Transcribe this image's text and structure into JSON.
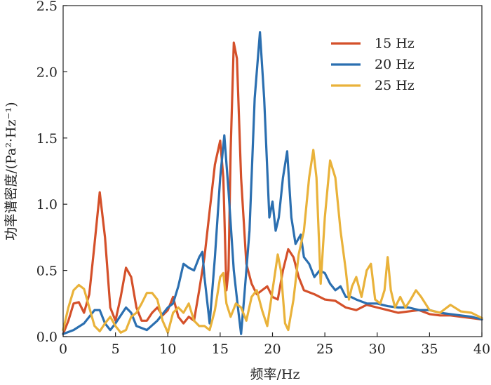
{
  "chart_data": {
    "type": "line",
    "title": "",
    "xlabel": "频率/Hz",
    "ylabel": "功率谱密度/(Pa²·Hz⁻¹)",
    "xlim": [
      0,
      40
    ],
    "ylim": [
      0,
      2.5
    ],
    "x_ticks": [
      0,
      5,
      10,
      15,
      20,
      25,
      30,
      35,
      40
    ],
    "y_ticks": [
      0.0,
      0.5,
      1.0,
      1.5,
      2.0,
      2.5
    ],
    "y_tick_labels": [
      "0.0",
      "0.5",
      "1.0",
      "1.5",
      "2.0",
      "2.5"
    ],
    "grid": false,
    "legend_position": "top-right",
    "series": [
      {
        "name": "15 Hz",
        "color": "#d4502a",
        "points": [
          [
            0,
            0.02
          ],
          [
            0.5,
            0.12
          ],
          [
            1,
            0.25
          ],
          [
            1.5,
            0.26
          ],
          [
            2,
            0.18
          ],
          [
            2.5,
            0.32
          ],
          [
            3,
            0.7
          ],
          [
            3.5,
            1.09
          ],
          [
            4,
            0.75
          ],
          [
            4.5,
            0.22
          ],
          [
            5,
            0.12
          ],
          [
            5.5,
            0.3
          ],
          [
            6,
            0.52
          ],
          [
            6.5,
            0.45
          ],
          [
            7,
            0.22
          ],
          [
            7.5,
            0.12
          ],
          [
            8,
            0.12
          ],
          [
            8.5,
            0.18
          ],
          [
            9,
            0.22
          ],
          [
            9.5,
            0.16
          ],
          [
            10,
            0.2
          ],
          [
            10.5,
            0.3
          ],
          [
            11,
            0.15
          ],
          [
            11.5,
            0.1
          ],
          [
            12,
            0.15
          ],
          [
            12.5,
            0.12
          ],
          [
            13,
            0.35
          ],
          [
            13.5,
            0.6
          ],
          [
            14,
            0.95
          ],
          [
            14.5,
            1.3
          ],
          [
            15,
            1.48
          ],
          [
            15.3,
            1.2
          ],
          [
            15.6,
            0.35
          ],
          [
            15.8,
            0.5
          ],
          [
            16,
            1.4
          ],
          [
            16.3,
            2.22
          ],
          [
            16.6,
            2.1
          ],
          [
            17,
            1.2
          ],
          [
            17.5,
            0.55
          ],
          [
            18,
            0.4
          ],
          [
            18.5,
            0.32
          ],
          [
            19,
            0.35
          ],
          [
            19.5,
            0.38
          ],
          [
            20,
            0.3
          ],
          [
            20.5,
            0.28
          ],
          [
            21,
            0.5
          ],
          [
            21.5,
            0.66
          ],
          [
            22,
            0.6
          ],
          [
            22.5,
            0.45
          ],
          [
            23,
            0.35
          ],
          [
            24,
            0.32
          ],
          [
            25,
            0.28
          ],
          [
            26,
            0.27
          ],
          [
            27,
            0.22
          ],
          [
            28,
            0.2
          ],
          [
            29,
            0.24
          ],
          [
            30,
            0.22
          ],
          [
            31,
            0.2
          ],
          [
            32,
            0.18
          ],
          [
            33,
            0.19
          ],
          [
            34,
            0.2
          ],
          [
            35,
            0.17
          ],
          [
            36,
            0.16
          ],
          [
            37,
            0.16
          ],
          [
            38,
            0.15
          ],
          [
            39,
            0.14
          ],
          [
            40,
            0.13
          ]
        ]
      },
      {
        "name": "20 Hz",
        "color": "#2b6fb0",
        "points": [
          [
            0,
            0.02
          ],
          [
            1,
            0.05
          ],
          [
            2,
            0.1
          ],
          [
            2.5,
            0.15
          ],
          [
            3,
            0.2
          ],
          [
            3.5,
            0.2
          ],
          [
            4,
            0.1
          ],
          [
            4.5,
            0.05
          ],
          [
            5,
            0.1
          ],
          [
            6,
            0.22
          ],
          [
            6.5,
            0.18
          ],
          [
            7,
            0.08
          ],
          [
            8,
            0.05
          ],
          [
            9,
            0.12
          ],
          [
            10,
            0.22
          ],
          [
            10.5,
            0.25
          ],
          [
            11,
            0.38
          ],
          [
            11.5,
            0.55
          ],
          [
            12,
            0.52
          ],
          [
            12.5,
            0.5
          ],
          [
            13,
            0.6
          ],
          [
            13.3,
            0.64
          ],
          [
            13.5,
            0.45
          ],
          [
            14,
            0.1
          ],
          [
            14.5,
            0.6
          ],
          [
            15,
            1.2
          ],
          [
            15.4,
            1.52
          ],
          [
            15.8,
            1.1
          ],
          [
            16.3,
            0.5
          ],
          [
            16.7,
            0.22
          ],
          [
            17,
            0.02
          ],
          [
            17.3,
            0.3
          ],
          [
            17.8,
            0.8
          ],
          [
            18.3,
            1.8
          ],
          [
            18.8,
            2.3
          ],
          [
            19.2,
            1.8
          ],
          [
            19.7,
            0.9
          ],
          [
            20,
            1.02
          ],
          [
            20.3,
            0.8
          ],
          [
            20.6,
            0.9
          ],
          [
            21,
            1.2
          ],
          [
            21.4,
            1.4
          ],
          [
            21.8,
            0.9
          ],
          [
            22.2,
            0.7
          ],
          [
            22.7,
            0.77
          ],
          [
            23,
            0.6
          ],
          [
            23.5,
            0.55
          ],
          [
            24,
            0.45
          ],
          [
            24.5,
            0.5
          ],
          [
            25,
            0.48
          ],
          [
            25.5,
            0.4
          ],
          [
            26,
            0.35
          ],
          [
            26.5,
            0.38
          ],
          [
            27,
            0.3
          ],
          [
            27.5,
            0.3
          ],
          [
            28,
            0.28
          ],
          [
            29,
            0.25
          ],
          [
            30,
            0.25
          ],
          [
            31,
            0.23
          ],
          [
            32,
            0.22
          ],
          [
            33,
            0.22
          ],
          [
            34,
            0.2
          ],
          [
            35,
            0.2
          ],
          [
            36,
            0.18
          ],
          [
            37,
            0.17
          ],
          [
            38,
            0.16
          ],
          [
            39,
            0.15
          ],
          [
            40,
            0.13
          ]
        ]
      },
      {
        "name": "25 Hz",
        "color": "#e9b23a",
        "points": [
          [
            0,
            0.05
          ],
          [
            0.5,
            0.22
          ],
          [
            1,
            0.35
          ],
          [
            1.5,
            0.39
          ],
          [
            2,
            0.36
          ],
          [
            2.5,
            0.22
          ],
          [
            3,
            0.08
          ],
          [
            3.5,
            0.04
          ],
          [
            4,
            0.1
          ],
          [
            4.5,
            0.15
          ],
          [
            5,
            0.08
          ],
          [
            5.5,
            0.03
          ],
          [
            6,
            0.05
          ],
          [
            6.5,
            0.15
          ],
          [
            7,
            0.18
          ],
          [
            7.5,
            0.25
          ],
          [
            8,
            0.33
          ],
          [
            8.5,
            0.33
          ],
          [
            9,
            0.28
          ],
          [
            9.5,
            0.12
          ],
          [
            10,
            0.03
          ],
          [
            10.5,
            0.18
          ],
          [
            11,
            0.22
          ],
          [
            11.5,
            0.18
          ],
          [
            12,
            0.25
          ],
          [
            12.5,
            0.12
          ],
          [
            13,
            0.08
          ],
          [
            13.5,
            0.08
          ],
          [
            14,
            0.05
          ],
          [
            14.5,
            0.2
          ],
          [
            15,
            0.45
          ],
          [
            15.3,
            0.48
          ],
          [
            15.6,
            0.25
          ],
          [
            16,
            0.15
          ],
          [
            16.5,
            0.25
          ],
          [
            17,
            0.22
          ],
          [
            17.5,
            0.12
          ],
          [
            18,
            0.3
          ],
          [
            18.5,
            0.35
          ],
          [
            19,
            0.2
          ],
          [
            19.5,
            0.08
          ],
          [
            20,
            0.35
          ],
          [
            20.5,
            0.62
          ],
          [
            20.8,
            0.5
          ],
          [
            21.2,
            0.1
          ],
          [
            21.5,
            0.05
          ],
          [
            22,
            0.28
          ],
          [
            22.5,
            0.62
          ],
          [
            23,
            0.8
          ],
          [
            23.5,
            1.2
          ],
          [
            23.9,
            1.41
          ],
          [
            24.2,
            1.2
          ],
          [
            24.6,
            0.4
          ],
          [
            25,
            0.9
          ],
          [
            25.5,
            1.33
          ],
          [
            26,
            1.2
          ],
          [
            26.5,
            0.8
          ],
          [
            27,
            0.5
          ],
          [
            27.3,
            0.28
          ],
          [
            27.6,
            0.38
          ],
          [
            28,
            0.45
          ],
          [
            28.5,
            0.3
          ],
          [
            29,
            0.5
          ],
          [
            29.4,
            0.55
          ],
          [
            29.8,
            0.28
          ],
          [
            30.3,
            0.25
          ],
          [
            30.7,
            0.35
          ],
          [
            31,
            0.6
          ],
          [
            31.3,
            0.35
          ],
          [
            31.7,
            0.22
          ],
          [
            32.2,
            0.3
          ],
          [
            32.7,
            0.22
          ],
          [
            33.2,
            0.28
          ],
          [
            33.7,
            0.35
          ],
          [
            34.2,
            0.3
          ],
          [
            35,
            0.2
          ],
          [
            36,
            0.18
          ],
          [
            37,
            0.24
          ],
          [
            38,
            0.19
          ],
          [
            39,
            0.18
          ],
          [
            40,
            0.14
          ]
        ]
      }
    ]
  }
}
